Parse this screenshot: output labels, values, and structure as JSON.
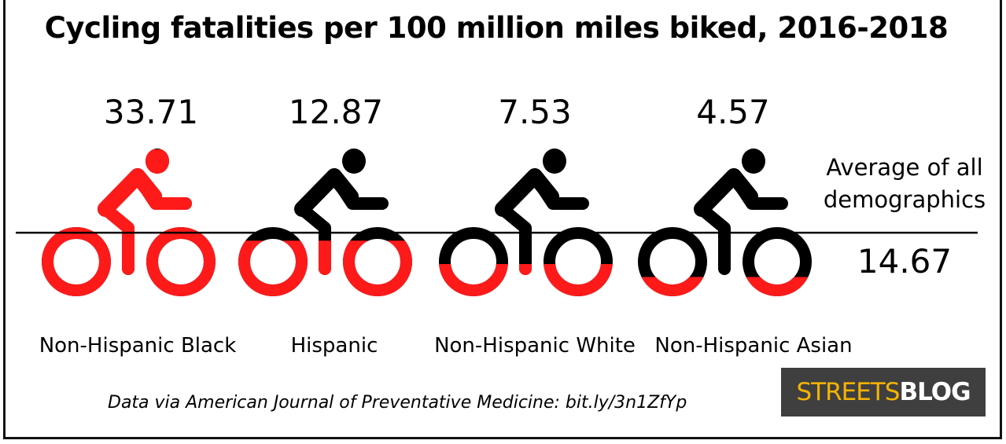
{
  "chart_data": {
    "type": "pictogram",
    "title": "Cycling fatalities per 100 million miles biked, 2016-2018",
    "categories": [
      "Non-Hispanic Black",
      "Hispanic",
      "Non-Hispanic White",
      "Non-Hispanic Asian"
    ],
    "values": [
      33.71,
      12.87,
      7.53,
      4.57
    ],
    "value_labels": [
      "33.71",
      "12.87",
      "7.53",
      "4.57"
    ],
    "reference_line": {
      "label": "Average of all demographics",
      "value": 14.67,
      "value_label": "14.67"
    },
    "scale_max": 33.71,
    "colors": {
      "fill": "#ff1a1a",
      "base": "#000000"
    }
  },
  "source": "Data via American Journal of Preventative Medicine:  bit.ly/3n1ZfYp",
  "logo": {
    "part1": "STREETS",
    "part2": "BLOG"
  }
}
